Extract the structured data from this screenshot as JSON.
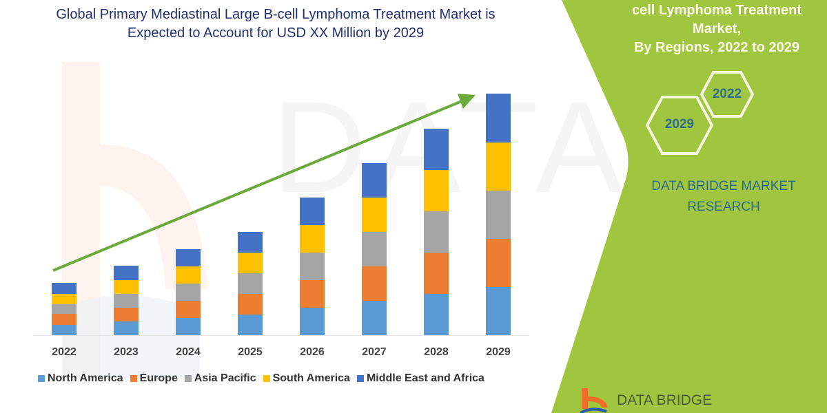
{
  "left_title": {
    "line1": "Global Primary Mediastinal Large B-cell Lymphoma Treatment Market is",
    "line2": "Expected to Account for USD XX Million by 2029"
  },
  "right_panel": {
    "title_line1": "cell Lymphoma Treatment Market,",
    "title_line2": "By Regions, 2022 to 2029",
    "hex_2022": "2022",
    "hex_2029": "2029",
    "brand_line1": "DATA BRIDGE MARKET",
    "brand_line2": "RESEARCH",
    "logo_text": "DATA BRIDGE",
    "panel_color": "#9fc63e"
  },
  "watermark": "DATABRIDGE",
  "chart_data": {
    "type": "bar",
    "stacked": true,
    "title": "Global Primary Mediastinal Large B-cell Lymphoma Treatment Market is Expected to Account for USD XX Million by 2029",
    "xlabel": "",
    "ylabel": "",
    "categories": [
      "2022",
      "2023",
      "2024",
      "2025",
      "2026",
      "2027",
      "2028",
      "2029"
    ],
    "series": [
      {
        "name": "North America",
        "color": "#5b9bd5",
        "values": [
          15,
          20,
          25,
          30,
          40,
          50,
          60,
          70
        ]
      },
      {
        "name": "Europe",
        "color": "#ed7d31",
        "values": [
          16,
          20,
          25,
          30,
          40,
          50,
          60,
          70
        ]
      },
      {
        "name": "Asia Pacific",
        "color": "#a5a5a5",
        "values": [
          14,
          20,
          25,
          30,
          40,
          50,
          60,
          70
        ]
      },
      {
        "name": "South America",
        "color": "#ffc000",
        "values": [
          15,
          20,
          25,
          30,
          40,
          50,
          60,
          70
        ]
      },
      {
        "name": "Middle East and Africa",
        "color": "#4472c4",
        "values": [
          16,
          21,
          25,
          30,
          40,
          50,
          60,
          71
        ]
      }
    ],
    "grid": false,
    "y_axis_visible": false,
    "legend_position": "bottom",
    "annotations": [
      "green upward trend arrow from 2022 to 2029"
    ]
  }
}
